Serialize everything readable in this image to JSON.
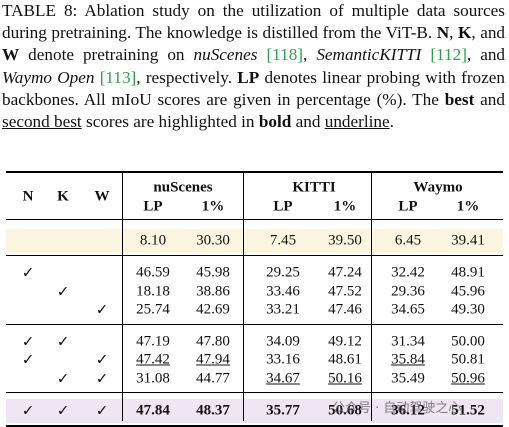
{
  "caption": [
    {
      "text": "TABLE 8: Ablation study on the utilization of multiple data sources during pretraining. The knowledge is distilled from the ViT-B. "
    },
    {
      "text": "N",
      "style": "bold"
    },
    {
      "text": ", "
    },
    {
      "text": "K",
      "style": "bold"
    },
    {
      "text": ", and "
    },
    {
      "text": "W",
      "style": "bold"
    },
    {
      "text": " denote pretraining on "
    },
    {
      "text": "nuScenes",
      "style": "italic"
    },
    {
      "text": " "
    },
    {
      "text": "[118]",
      "style": "ref"
    },
    {
      "text": ", "
    },
    {
      "text": "SemanticKITTI",
      "style": "italic"
    },
    {
      "text": " "
    },
    {
      "text": "[112]",
      "style": "ref"
    },
    {
      "text": ", and "
    },
    {
      "text": "Waymo Open",
      "style": "italic"
    },
    {
      "text": " "
    },
    {
      "text": "[113]",
      "style": "ref"
    },
    {
      "text": ", respectively. "
    },
    {
      "text": "LP",
      "style": "bold"
    },
    {
      "text": " denotes linear probing with frozen backbones. All mIoU scores are given in percentage (%). The "
    },
    {
      "text": "best",
      "style": "bold"
    },
    {
      "text": " and "
    },
    {
      "text": "second best",
      "style": "underline"
    },
    {
      "text": " scores are highlighted in "
    },
    {
      "text": "bold",
      "style": "bold"
    },
    {
      "text": " and "
    },
    {
      "text": "underline",
      "style": "underline"
    },
    {
      "text": "."
    }
  ],
  "table": {
    "sources": [
      "N",
      "K",
      "W"
    ],
    "datasets": [
      "nuScenes",
      "KITTI",
      "Waymo"
    ],
    "subheaders": [
      "LP",
      "1%",
      "LP",
      "1%",
      "LP",
      "1%"
    ],
    "row_groups": [
      {
        "highlight": "#fcf6e1",
        "rows": [
          {
            "marks": [
              null,
              null,
              null
            ],
            "values": [
              "8.10",
              "30.30",
              "7.45",
              "39.50",
              "6.45",
              "39.41"
            ],
            "styles": [
              null,
              null,
              null,
              null,
              null,
              null
            ]
          }
        ]
      },
      {
        "rows": [
          {
            "marks": [
              "✓",
              null,
              null
            ],
            "values": [
              "46.59",
              "45.98",
              "29.25",
              "47.24",
              "32.42",
              "48.91"
            ],
            "styles": [
              null,
              null,
              null,
              null,
              null,
              null
            ]
          },
          {
            "marks": [
              null,
              "✓",
              null
            ],
            "values": [
              "18.18",
              "38.86",
              "33.46",
              "47.52",
              "29.36",
              "45.96"
            ],
            "styles": [
              null,
              null,
              null,
              null,
              null,
              null
            ]
          },
          {
            "marks": [
              null,
              null,
              "✓"
            ],
            "values": [
              "25.74",
              "42.69",
              "33.21",
              "47.46",
              "34.65",
              "49.30"
            ],
            "styles": [
              null,
              null,
              null,
              null,
              null,
              null
            ]
          }
        ]
      },
      {
        "rows": [
          {
            "marks": [
              "✓",
              "✓",
              null
            ],
            "values": [
              "47.19",
              "47.80",
              "34.09",
              "49.12",
              "31.34",
              "50.00"
            ],
            "styles": [
              null,
              null,
              null,
              null,
              null,
              null
            ]
          },
          {
            "marks": [
              "✓",
              null,
              "✓"
            ],
            "values": [
              "47.42",
              "47.94",
              "33.16",
              "48.61",
              "35.84",
              "50.81"
            ],
            "styles": [
              "underline",
              "underline",
              null,
              null,
              "underline",
              null
            ]
          },
          {
            "marks": [
              null,
              "✓",
              "✓"
            ],
            "values": [
              "31.08",
              "44.77",
              "34.67",
              "50.16",
              "35.49",
              "50.96"
            ],
            "styles": [
              null,
              null,
              "underline",
              "underline",
              null,
              "underline"
            ]
          }
        ]
      },
      {
        "highlight": "#efe5f3",
        "rows": [
          {
            "marks": [
              "✓",
              "✓",
              "✓"
            ],
            "values": [
              "47.84",
              "48.37",
              "35.77",
              "50.68",
              "36.12",
              "51.52"
            ],
            "styles": [
              "bold",
              "bold",
              "bold",
              "bold",
              "bold",
              "bold"
            ]
          }
        ]
      }
    ]
  },
  "watermark": "公众号 · 自动驾驶之心"
}
